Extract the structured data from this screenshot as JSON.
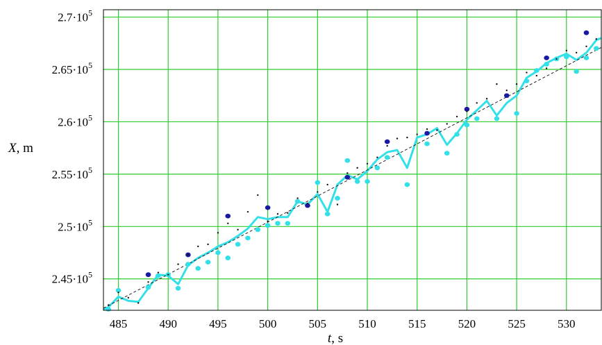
{
  "chart_data": {
    "type": "scatter",
    "xlabel_var": "t",
    "xlabel_unit": ", s",
    "ylabel_var": "X",
    "ylabel_unit": ", m",
    "xlim": [
      483.5,
      533.5
    ],
    "ylim": [
      242000,
      270700
    ],
    "x_ticks": [
      485,
      490,
      495,
      500,
      505,
      510,
      515,
      520,
      525,
      530
    ],
    "y_ticks": [
      {
        "value": 245000,
        "mantissa": "2.45",
        "exp": "5"
      },
      {
        "value": 250000,
        "mantissa": "2.5",
        "exp": "5"
      },
      {
        "value": 255000,
        "mantissa": "2.55",
        "exp": "5"
      },
      {
        "value": 260000,
        "mantissa": "2.6",
        "exp": "5"
      },
      {
        "value": 265000,
        "mantissa": "2.65",
        "exp": "5"
      },
      {
        "value": 270000,
        "mantissa": "2.7",
        "exp": "5"
      }
    ],
    "grid": true,
    "grid_color": "#2ecc2e",
    "series": [
      {
        "style": "line",
        "color": "#33e0e8",
        "x": [
          483.5,
          484,
          485,
          486,
          487,
          488,
          489,
          490,
          491,
          492,
          493,
          494,
          495,
          496,
          497,
          498,
          499,
          500,
          501,
          502,
          503,
          504,
          505,
          506,
          507,
          508,
          509,
          510,
          511,
          512,
          513,
          514,
          515,
          516,
          517,
          518,
          519,
          520,
          521,
          522,
          523,
          524,
          525,
          526,
          527,
          528,
          529,
          530,
          531,
          532,
          533,
          533.5
        ],
        "y": [
          242100,
          242300,
          243300,
          242900,
          242800,
          244100,
          245400,
          245300,
          244500,
          246300,
          247000,
          247500,
          248100,
          248500,
          249100,
          249800,
          250900,
          250700,
          250900,
          250900,
          252400,
          252100,
          253100,
          251400,
          254000,
          254900,
          254500,
          255300,
          256400,
          257100,
          257300,
          255600,
          258500,
          258800,
          259400,
          257800,
          258900,
          260200,
          261100,
          262000,
          260600,
          261800,
          262500,
          264200,
          264800,
          265600,
          266100,
          266500,
          265900,
          266600,
          267800,
          268000
        ]
      },
      {
        "style": "dashed",
        "color": "#222222",
        "x": [
          483.5,
          533.5
        ],
        "y": [
          242200,
          267100
        ]
      },
      {
        "style": "dots",
        "color": "#33e0e8",
        "x": [
          484,
          485,
          488,
          489,
          490,
          491,
          492,
          493,
          494,
          495,
          496,
          497,
          498,
          499,
          500,
          501,
          502,
          503,
          505,
          506,
          507,
          508,
          509,
          510,
          511,
          512,
          514,
          516,
          518,
          519,
          520,
          521,
          523,
          525,
          526,
          527,
          528,
          529,
          530,
          531,
          532,
          533
        ],
        "y": [
          242100,
          243900,
          244200,
          245300,
          245400,
          244100,
          246400,
          246000,
          246600,
          247500,
          247000,
          248300,
          248900,
          249700,
          250100,
          250300,
          250300,
          252400,
          254200,
          251200,
          252700,
          256300,
          254300,
          254300,
          255600,
          256600,
          254000,
          257900,
          257000,
          258800,
          259700,
          260300,
          260300,
          260800,
          263900,
          264900,
          265500,
          266000,
          266200,
          264800,
          266100,
          267000
        ]
      },
      {
        "style": "dots",
        "color": "#1a1aa0",
        "x": [
          488,
          492,
          496,
          500,
          504,
          508,
          512,
          516,
          520,
          524,
          528,
          532
        ],
        "y": [
          245400,
          247300,
          251000,
          251800,
          252000,
          254700,
          258100,
          258900,
          261200,
          262500,
          266100,
          268500
        ]
      },
      {
        "style": "small-dots",
        "color": "#111111",
        "x": [
          484,
          485,
          486,
          487,
          488,
          489,
          490,
          491,
          492,
          493,
          494,
          495,
          496,
          497,
          498,
          499,
          500,
          501,
          502,
          503,
          504,
          505,
          506,
          507,
          508,
          509,
          510,
          511,
          512,
          513,
          514,
          515,
          516,
          517,
          518,
          519,
          520,
          521,
          522,
          523,
          524,
          525,
          526,
          527,
          528,
          529,
          530,
          531,
          532,
          533
        ],
        "y": [
          242500,
          243700,
          243200,
          242700,
          244700,
          245600,
          245400,
          246400,
          247300,
          248100,
          248300,
          249400,
          250300,
          249700,
          251400,
          253000,
          250500,
          251200,
          251300,
          252700,
          252200,
          253300,
          254000,
          252100,
          255100,
          255600,
          256000,
          256600,
          257700,
          258400,
          258500,
          258800,
          259300,
          259200,
          259800,
          260500,
          261000,
          261800,
          262200,
          263600,
          263000,
          263600,
          264700,
          264400,
          265100,
          266000,
          266800,
          266600,
          267200,
          267900
        ]
      }
    ]
  }
}
